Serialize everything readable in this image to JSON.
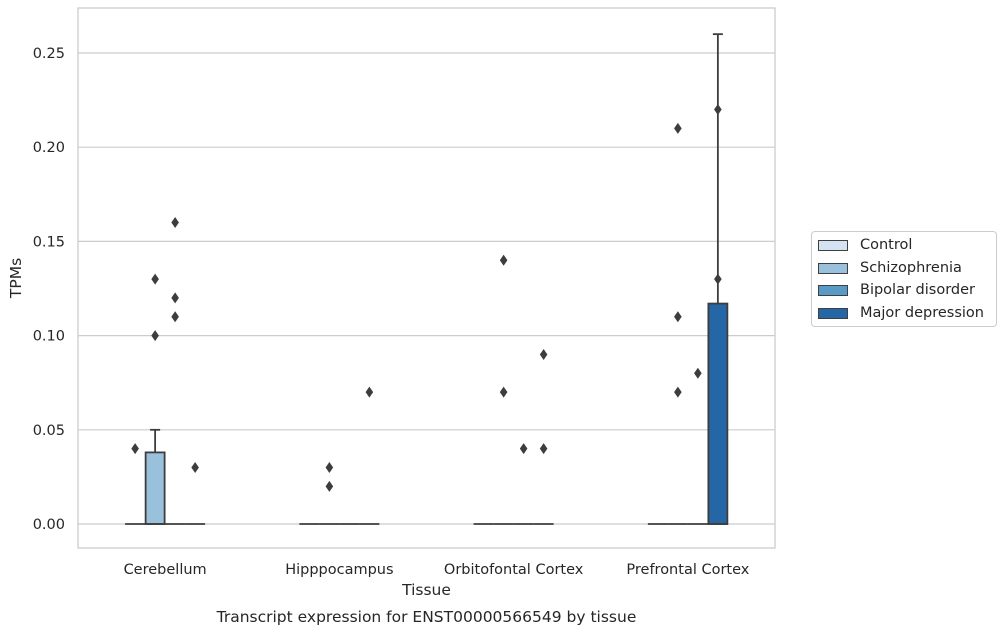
{
  "chart_data": {
    "type": "box",
    "title": "Transcript expression for ENST00000566549 by tissue",
    "xlabel": "Tissue",
    "ylabel": "TPMs",
    "ylim": [
      -0.013,
      0.274
    ],
    "yticks": [
      "0.00",
      "0.05",
      "0.10",
      "0.15",
      "0.20",
      "0.25"
    ],
    "ytick_values": [
      0.0,
      0.05,
      0.1,
      0.15,
      0.2,
      0.25
    ],
    "categories": [
      "Cerebellum",
      "Hipppocampus",
      "Orbitofontal Cortex",
      "Prefrontal Cortex"
    ],
    "grid": "horizontal",
    "legend_position": "right",
    "series": [
      {
        "name": "Control",
        "color": "#d4e3f1",
        "boxes": [
          {
            "q1": 0,
            "median": 0,
            "q3": 0,
            "whisker_low": 0,
            "whisker_high": 0,
            "outliers": [
              0.04
            ]
          },
          {
            "q1": 0,
            "median": 0,
            "q3": 0,
            "whisker_low": 0,
            "whisker_high": 0,
            "outliers": []
          },
          {
            "q1": 0,
            "median": 0,
            "q3": 0,
            "whisker_low": 0,
            "whisker_high": 0,
            "outliers": []
          },
          {
            "q1": 0,
            "median": 0,
            "q3": 0,
            "whisker_low": 0,
            "whisker_high": 0,
            "outliers": []
          }
        ]
      },
      {
        "name": "Schizophrenia",
        "color": "#9ac1dc",
        "boxes": [
          {
            "q1": 0,
            "median": 0,
            "q3": 0.038,
            "whisker_low": 0,
            "whisker_high": 0.05,
            "outliers": [
              0.1,
              0.13
            ]
          },
          {
            "q1": 0,
            "median": 0,
            "q3": 0,
            "whisker_low": 0,
            "whisker_high": 0,
            "outliers": [
              0.02,
              0.03
            ]
          },
          {
            "q1": 0,
            "median": 0,
            "q3": 0,
            "whisker_low": 0,
            "whisker_high": 0,
            "outliers": [
              0.07,
              0.14
            ]
          },
          {
            "q1": 0,
            "median": 0,
            "q3": 0,
            "whisker_low": 0,
            "whisker_high": 0,
            "outliers": [
              0.07,
              0.11,
              0.21
            ]
          }
        ]
      },
      {
        "name": "Bipolar disorder",
        "color": "#5a9ac7",
        "boxes": [
          {
            "q1": 0,
            "median": 0,
            "q3": 0,
            "whisker_low": 0,
            "whisker_high": 0,
            "outliers": [
              0.11,
              0.12,
              0.16
            ]
          },
          {
            "q1": 0,
            "median": 0,
            "q3": 0,
            "whisker_low": 0,
            "whisker_high": 0,
            "outliers": []
          },
          {
            "q1": 0,
            "median": 0,
            "q3": 0,
            "whisker_low": 0,
            "whisker_high": 0,
            "outliers": [
              0.04
            ]
          },
          {
            "q1": 0,
            "median": 0,
            "q3": 0,
            "whisker_low": 0,
            "whisker_high": 0,
            "outliers": [
              0.08
            ]
          }
        ]
      },
      {
        "name": "Major depression",
        "color": "#2566a6",
        "boxes": [
          {
            "q1": 0,
            "median": 0,
            "q3": 0,
            "whisker_low": 0,
            "whisker_high": 0,
            "outliers": [
              0.03
            ]
          },
          {
            "q1": 0,
            "median": 0,
            "q3": 0,
            "whisker_low": 0,
            "whisker_high": 0,
            "outliers": [
              0.07
            ]
          },
          {
            "q1": 0,
            "median": 0,
            "q3": 0,
            "whisker_low": 0,
            "whisker_high": 0,
            "outliers": [
              0.04,
              0.09
            ]
          },
          {
            "q1": 0,
            "median": 0,
            "q3": 0.117,
            "whisker_low": 0,
            "whisker_high": 0.26,
            "outliers": [
              0.13,
              0.22
            ]
          }
        ]
      }
    ]
  }
}
